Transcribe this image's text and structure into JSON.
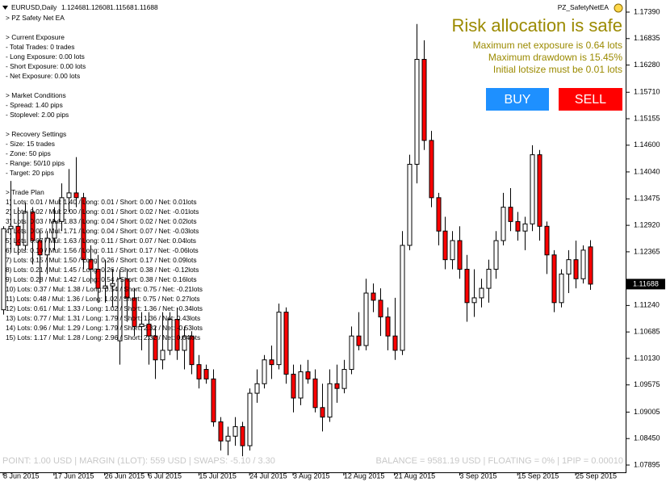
{
  "chart_data": {
    "type": "candlestick",
    "categories": [
      "8 Jun 2015",
      null,
      null,
      null,
      null,
      null,
      null,
      "17 Jun 2015",
      null,
      null,
      null,
      null,
      null,
      null,
      "26 Jun 2015",
      null,
      null,
      null,
      null,
      null,
      "6 Jul 2015",
      null,
      null,
      null,
      null,
      null,
      null,
      "15 Jul 2015",
      null,
      null,
      null,
      null,
      null,
      null,
      "24 Jul 2015",
      null,
      null,
      null,
      null,
      null,
      "3 Aug 2015",
      null,
      null,
      null,
      null,
      null,
      null,
      "12 Aug 2015",
      null,
      null,
      null,
      null,
      null,
      null,
      "21 Aug 2015",
      null,
      null,
      null,
      null,
      null,
      null,
      null,
      null,
      "3 Sep 2015",
      null,
      null,
      null,
      null,
      null,
      null,
      null,
      "15 Sep 2015",
      null,
      null,
      null,
      null,
      null,
      null,
      null,
      "25 Sep 2015",
      null,
      null
    ],
    "open": [
      1.1115,
      1.1285,
      1.129,
      1.125,
      1.132,
      1.126,
      1.123,
      1.1265,
      1.13,
      1.135,
      1.136,
      1.135,
      1.122,
      1.12,
      1.116,
      1.1165,
      1.105,
      1.118,
      1.114,
      1.108,
      1.1085,
      1.106,
      1.101,
      1.103,
      1.1095,
      1.103,
      1.106,
      1.1,
      1.099,
      1.097,
      1.088,
      1.084,
      1.085,
      1.087,
      1.083,
      1.094,
      1.096,
      1.101,
      1.1,
      1.111,
      1.098,
      1.093,
      1.0985,
      1.097,
      1.091,
      1.089,
      1.096,
      1.095,
      1.099,
      1.106,
      1.104,
      1.115,
      1.1135,
      1.11,
      1.106,
      1.103,
      1.125,
      1.142,
      1.164,
      1.147,
      1.135,
      1.128,
      1.122,
      1.126,
      1.12,
      1.113,
      1.114,
      1.116,
      1.12,
      1.126,
      1.133,
      1.13,
      1.128,
      1.1295,
      1.144,
      1.129,
      1.123,
      1.113,
      1.119,
      1.122,
      1.118,
      1.12468
    ],
    "high": [
      1.129,
      1.1385,
      1.133,
      1.134,
      1.133,
      1.128,
      1.128,
      1.133,
      1.138,
      1.141,
      1.1435,
      1.136,
      1.125,
      1.123,
      1.122,
      1.12,
      1.12,
      1.12,
      1.116,
      1.111,
      1.111,
      1.108,
      1.111,
      1.111,
      1.112,
      1.108,
      1.107,
      1.102,
      1.1,
      1.099,
      1.089,
      1.087,
      1.089,
      1.088,
      1.095,
      1.099,
      1.102,
      1.104,
      1.1128,
      1.112,
      1.1,
      1.1,
      1.101,
      1.099,
      1.096,
      1.099,
      1.1,
      1.101,
      1.108,
      1.111,
      1.118,
      1.117,
      1.116,
      1.112,
      1.114,
      1.128,
      1.144,
      1.1714,
      1.168,
      1.149,
      1.136,
      1.131,
      1.128,
      1.129,
      1.123,
      1.12,
      1.118,
      1.122,
      1.128,
      1.136,
      1.137,
      1.132,
      1.131,
      1.146,
      1.145,
      1.13,
      1.124,
      1.12,
      1.124,
      1.126,
      1.125,
      1.12608
    ],
    "low": [
      1.1105,
      1.1235,
      1.123,
      1.124,
      1.121,
      1.117,
      1.119,
      1.124,
      1.128,
      1.132,
      1.133,
      1.12,
      1.117,
      1.113,
      1.113,
      1.112,
      1.1,
      1.109,
      1.106,
      1.103,
      1.1,
      1.097,
      1.099,
      1.102,
      1.101,
      1.099,
      1.098,
      1.095,
      1.096,
      1.087,
      1.082,
      1.081,
      1.083,
      1.0808,
      1.082,
      1.092,
      1.095,
      1.097,
      1.099,
      1.096,
      1.09,
      1.0915,
      1.096,
      1.09,
      1.086,
      1.088,
      1.092,
      1.094,
      1.098,
      1.103,
      1.103,
      1.111,
      1.106,
      1.103,
      1.101,
      1.102,
      1.124,
      1.138,
      1.145,
      1.133,
      1.125,
      1.12,
      1.12,
      1.118,
      1.109,
      1.11,
      1.112,
      1.113,
      1.118,
      1.125,
      1.128,
      1.126,
      1.124,
      1.128,
      1.126,
      1.119,
      1.111,
      1.112,
      1.115,
      1.116,
      1.117,
      1.11568
    ],
    "close": [
      1.1285,
      1.129,
      1.125,
      1.132,
      1.126,
      1.123,
      1.1265,
      1.13,
      1.135,
      1.136,
      1.135,
      1.122,
      1.12,
      1.116,
      1.1165,
      1.117,
      1.118,
      1.114,
      1.108,
      1.1085,
      1.106,
      1.101,
      1.103,
      1.1095,
      1.103,
      1.106,
      1.1,
      1.097,
      1.097,
      1.088,
      1.084,
      1.085,
      1.087,
      1.083,
      1.094,
      1.096,
      1.101,
      1.1,
      1.111,
      1.098,
      1.093,
      1.0985,
      1.097,
      1.091,
      1.089,
      1.096,
      1.095,
      1.099,
      1.106,
      1.104,
      1.115,
      1.1135,
      1.11,
      1.106,
      1.103,
      1.125,
      1.142,
      1.164,
      1.147,
      1.135,
      1.128,
      1.122,
      1.126,
      1.12,
      1.113,
      1.114,
      1.116,
      1.12,
      1.126,
      1.133,
      1.13,
      1.128,
      1.1295,
      1.144,
      1.129,
      1.123,
      1.113,
      1.119,
      1.122,
      1.118,
      1.124,
      1.11688
    ],
    "bull_color": "#ffffff",
    "bear_color": "#ff0000",
    "wick_color": "#000000",
    "ylim": [
      1.07895,
      1.1739
    ],
    "yticks": [
      {
        "value": 1.07895,
        "label": "1.07895"
      },
      {
        "value": 1.0845,
        "label": "1.08450"
      },
      {
        "value": 1.09005,
        "label": "1.09005"
      },
      {
        "value": 1.09575,
        "label": "1.09575"
      },
      {
        "value": 1.1013,
        "label": "1.10130"
      },
      {
        "value": 1.10685,
        "label": "1.10685"
      },
      {
        "value": 1.1124,
        "label": "1.11240"
      },
      {
        "value": 1.12365,
        "label": "1.12365"
      },
      {
        "value": 1.1292,
        "label": "1.12920"
      },
      {
        "value": 1.13475,
        "label": "1.13475"
      },
      {
        "value": 1.1404,
        "label": "1.14040"
      },
      {
        "value": 1.146,
        "label": "1.14600"
      },
      {
        "value": 1.15155,
        "label": "1.15155"
      },
      {
        "value": 1.1571,
        "label": "1.15710"
      },
      {
        "value": 1.1628,
        "label": "1.16280"
      },
      {
        "value": 1.16835,
        "label": "1.16835"
      },
      {
        "value": 1.1739,
        "label": "1.17390"
      }
    ],
    "grid": false
  },
  "ea_panel": {
    "symbol": "EURUSD,Daily",
    "ea_name": "PZ_SafetyNetEA",
    "title": "> PZ Safety Net EA",
    "sections": [
      {
        "heading": "> Current Exposure",
        "lines": [
          "- Total Trades: 0 trades",
          "- Long Exposure: 0.00 lots",
          "- Short Exposure: 0.00 lots",
          "- Net Exposure: 0.00 lots"
        ]
      },
      {
        "heading": "> Market Conditions",
        "lines": [
          "- Spread: 1.40 pips",
          "- Stoplevel: 2.00 pips"
        ]
      },
      {
        "heading": "> Recovery Settings",
        "lines": [
          "- Size: 15 trades",
          "- Zone: 50 pips",
          "- Range: 50/10 pips",
          "- Target: 20 pips"
        ]
      },
      {
        "heading": "> Trade Plan",
        "lines": [
          "1) Lots: 0.01 / Mul: 1.40 / Long: 0.01 / Short: 0.00 / Net: 0.01lots",
          "2) Lots: 0.02 / Mul: 2.00 / Long: 0.01 / Short: 0.02 / Net: -0.01lots",
          "3) Lots: 0.03 / Mul: 1.83 / Long: 0.04 / Short: 0.02 / Net: 0.02lots",
          "4) Lots: 0.05 / Mul: 1.71 / Long: 0.04 / Short: 0.07 / Net: -0.03lots",
          "5) Lots: 0.07 / Mul: 1.63 / Long: 0.11 / Short: 0.07 / Net: 0.04lots",
          "6) Lots: 0.10 / Mul: 1.56 / Long: 0.11 / Short: 0.17 / Net: -0.06lots",
          "7) Lots: 0.15 / Mul: 1.50 / Long: 0.26 / Short: 0.17 / Net: 0.09lots",
          "8) Lots: 0.21 / Mul: 1.45 / Long: 0.26 / Short: 0.38 / Net: -0.12lots",
          "9) Lots: 0.28 / Mul: 1.42 / Long: 0.54 / Short: 0.38 / Net: 0.16lots",
          "10) Lots: 0.37 / Mul: 1.38 / Long: 0.54 / Short: 0.75 / Net: -0.21lots",
          "11) Lots: 0.48 / Mul: 1.36 / Long: 1.02 / Short: 0.75 / Net: 0.27lots",
          "12) Lots: 0.61 / Mul: 1.33 / Long: 1.02 / Short: 1.36 / Net: -0.34lots",
          "13) Lots: 0.77 / Mul: 1.31 / Long: 1.79 / Short: 1.36 / Net: 0.43lots",
          "14) Lots: 0.96 / Mul: 1.29 / Long: 1.79 / Short: 2.32 / Net: -0.53lots",
          "15) Lots: 1.17 / Mul: 1.28 / Long: 2.96 / Short: 2.32 / Net: 0.64lots"
        ]
      }
    ],
    "status": {
      "headline": "Risk allocation is safe",
      "lines": [
        "Maximum net exposure is 0.64 lots",
        "Maximum drawdown is 15.45%",
        "Initial lotsize must be 0.01 lots"
      ]
    },
    "buttons": [
      "BUY",
      "SELL"
    ],
    "footer": [
      "POINT: 1.00 USD | MARGIN (1LOT): 559 USD | SWAPS: -5.10 / 3.30",
      "BALANCE = 9581.19 USD | FLOATING = 0% | 1PIP = 0.00010"
    ]
  }
}
